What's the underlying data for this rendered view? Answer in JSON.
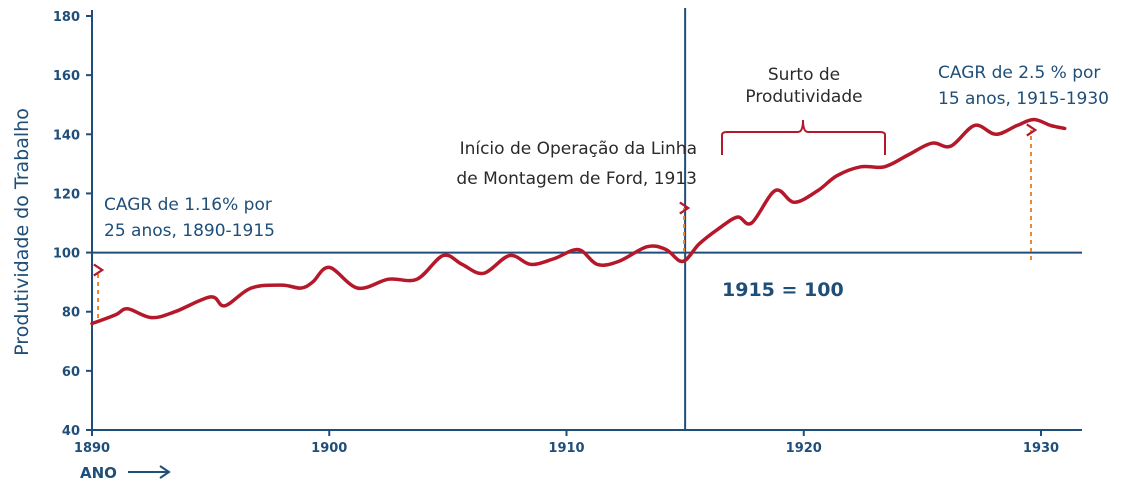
{
  "chart_data": {
    "type": "line",
    "xlabel": "ANO",
    "ylabel": "Produtividade do Trabalho",
    "xlim": [
      1890,
      1932
    ],
    "ylim": [
      40,
      180
    ],
    "x_ticks": [
      "1890",
      "1900",
      "1910",
      "1920",
      "1930"
    ],
    "y_ticks": [
      "40",
      "60",
      "80",
      "100",
      "120",
      "140",
      "160",
      "180"
    ],
    "grid": false,
    "colors": {
      "series": "#b5182b",
      "axis": "#1f4e79",
      "arrow": "#e8893a"
    },
    "series": [
      {
        "x": [
          1890,
          1891,
          1891.5,
          1892.5,
          1893.5,
          1895,
          1895.6,
          1896.7,
          1898,
          1898.8,
          1899.3,
          1900,
          1901.2,
          1902.5,
          1903.7,
          1904.8,
          1905.6,
          1906.5,
          1907.6,
          1908.5,
          1909.5,
          1910.5,
          1911.3,
          1912.2,
          1913.4,
          1914.2,
          1914.9,
          1915.6,
          1916.4,
          1917.2,
          1917.8,
          1918.8,
          1919.6,
          1920.6,
          1921.4,
          1922.4,
          1923.4,
          1924.4,
          1925.4,
          1926.2,
          1927.2,
          1928.1,
          1929,
          1929.7,
          1930.4,
          1931
        ],
        "y": [
          76,
          79,
          81,
          78,
          80,
          85,
          82,
          88,
          89,
          88,
          90,
          95,
          88,
          91,
          91,
          99,
          96,
          93,
          99,
          96,
          98,
          101,
          96,
          97,
          102,
          101,
          97,
          103,
          108,
          112,
          110,
          121,
          117,
          121,
          126,
          129,
          129,
          133,
          137,
          136,
          143,
          140,
          143,
          145,
          143,
          142
        ]
      }
    ],
    "reference_lines": {
      "y": 100,
      "x": 1915,
      "label": "1915 = 100"
    },
    "annotations": {
      "cagr1": [
        "CAGR de 1.16% por",
        "25 anos, 1890-1915"
      ],
      "ford": [
        "Início de Operação da Linha",
        "de Montagem de Ford, 1913"
      ],
      "surto": [
        "Surto de",
        "Produtividade"
      ],
      "cagr2": [
        "CAGR de 2.5 % por",
        "15 anos, 1915-1930"
      ]
    }
  }
}
